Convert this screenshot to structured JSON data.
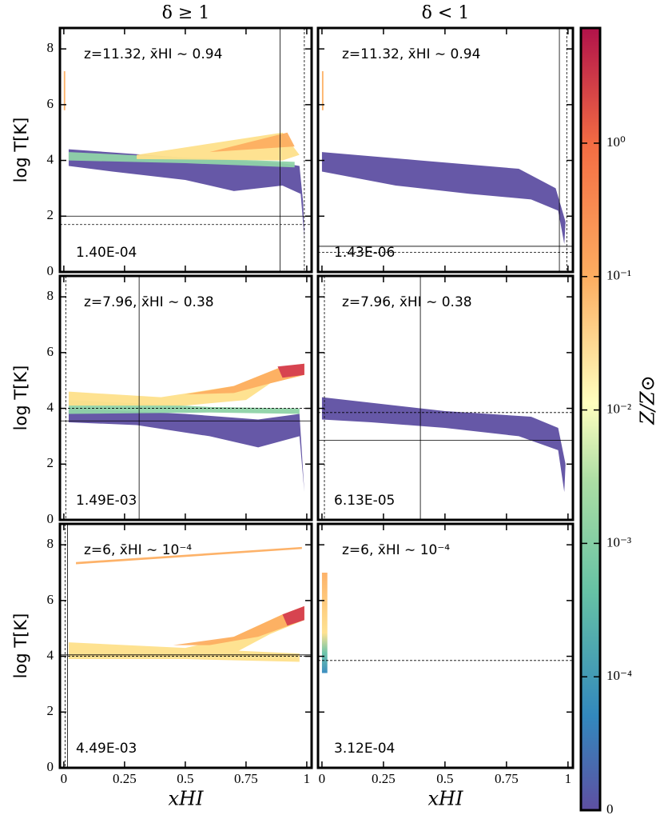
{
  "chart_data": {
    "type": "phase_grid",
    "column_titles": [
      "δ ≥ 1",
      "δ < 1"
    ],
    "ylabel": "log T[K]",
    "xlabel": "xHI",
    "xlim": [
      -0.016,
      1.02
    ],
    "ylim": [
      0,
      8.75
    ],
    "xticks": [
      0,
      0.25,
      0.5,
      0.75,
      1
    ],
    "yticks": [
      0,
      2,
      4,
      6,
      8
    ],
    "panels": [
      {
        "annotation": "z=11.32, x̄HI ∼ 0.94",
        "fraction_label": "1.40E-04",
        "vlines": [
          {
            "x": 0.89,
            "style": "solid"
          },
          {
            "x": 0.99,
            "style": "dashed"
          }
        ],
        "hlines": [
          {
            "y": 2.0,
            "style": "solid"
          },
          {
            "y": 1.7,
            "style": "dashed"
          }
        ]
      },
      {
        "annotation": "z=11.32, x̄HI ∼ 0.94",
        "fraction_label": "1.43E-06",
        "vlines": [
          {
            "x": 0.965,
            "style": "solid"
          },
          {
            "x": 0.995,
            "style": "dashed"
          }
        ],
        "hlines": [
          {
            "y": 0.92,
            "style": "solid"
          },
          {
            "y": 0.7,
            "style": "dashed"
          }
        ]
      },
      {
        "annotation": "z=7.96, x̄HI ∼ 0.38",
        "fraction_label": "1.49E-03",
        "vlines": [
          {
            "x": 0.31,
            "style": "solid"
          },
          {
            "x": 0.008,
            "style": "dashed"
          }
        ],
        "hlines": [
          {
            "y": 3.55,
            "style": "solid"
          },
          {
            "y": 4.0,
            "style": "dashed"
          }
        ]
      },
      {
        "annotation": "z=7.96, x̄HI ∼ 0.38",
        "fraction_label": "6.13E-05",
        "vlines": [
          {
            "x": 0.4,
            "style": "solid"
          },
          {
            "x": 0.01,
            "style": "dashed"
          }
        ],
        "hlines": [
          {
            "y": 2.85,
            "style": "solid"
          },
          {
            "y": 3.85,
            "style": "dashed"
          }
        ]
      },
      {
        "annotation": "z=6, x̄HI ∼ 10⁻⁴",
        "fraction_label": "4.49E-03",
        "vlines": [
          {
            "x": 0.015,
            "style": "solid"
          },
          {
            "x": 0.005,
            "style": "dashed"
          }
        ],
        "hlines": [
          {
            "y": 4.05,
            "style": "solid"
          },
          {
            "y": 4.0,
            "style": "dashed"
          }
        ]
      },
      {
        "annotation": "z=6, x̄HI ∼ 10⁻⁴",
        "fraction_label": "3.12E-04",
        "vlines": [],
        "hlines": [
          {
            "y": 3.85,
            "style": "dashed"
          }
        ]
      }
    ],
    "colorbar": {
      "label": "Z/Z⊙",
      "scale": "symlog",
      "linthresh": 0.0001,
      "clim": [
        0,
        7.3
      ],
      "ticks": [
        {
          "value": 0,
          "label": "0"
        },
        {
          "value": 0.0001,
          "label": "10⁻⁴"
        },
        {
          "value": 0.001,
          "label": "10⁻³"
        },
        {
          "value": 0.01,
          "label": "10⁻²"
        },
        {
          "value": 0.1,
          "label": "10⁻¹"
        },
        {
          "value": 1,
          "label": "10⁰"
        }
      ]
    }
  }
}
